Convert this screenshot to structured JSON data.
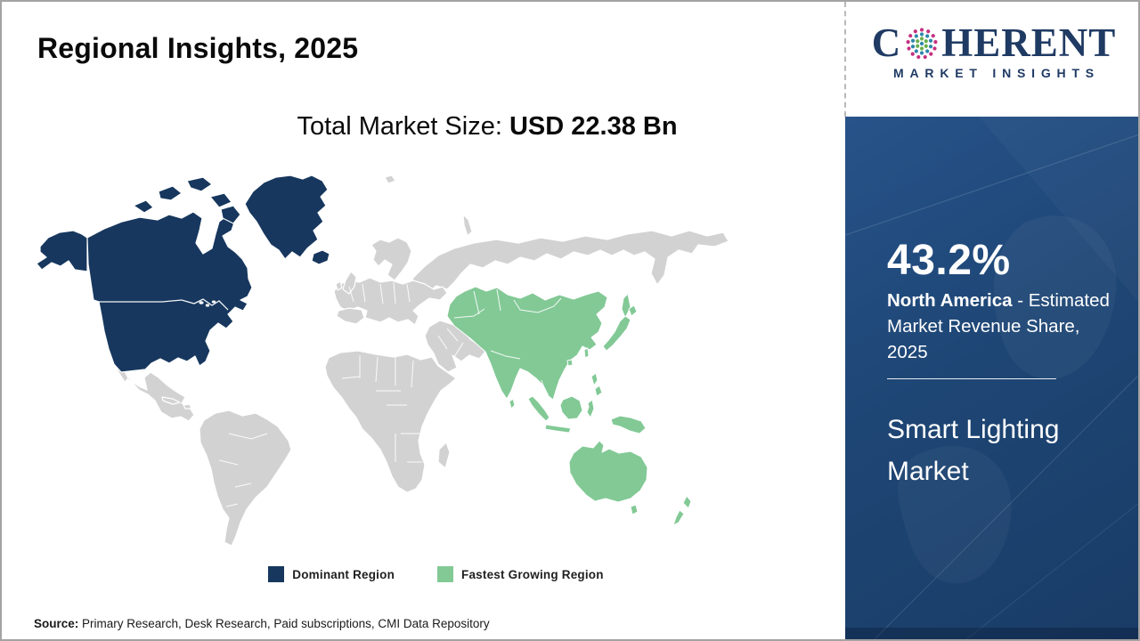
{
  "header": {
    "title": "Regional Insights, 2025"
  },
  "logo": {
    "brand_prefix": "C",
    "brand_suffix": "HERENT",
    "tagline": "MARKET INSIGHTS",
    "brand_color": "#1f3a63",
    "dot_colors": {
      "outer": "#c5307f",
      "mid": "#2e86ab",
      "inner": "#6ab04c"
    }
  },
  "market_size": {
    "label": "Total Market Size: ",
    "value": "USD 22.38 Bn"
  },
  "map": {
    "dominant_color": "#17375e",
    "growing_color": "#82c996",
    "base_land_color": "#d2d2d2",
    "border_color": "#ffffff"
  },
  "legend": [
    {
      "label": "Dominant Region",
      "color": "#17375e"
    },
    {
      "label": "Fastest Growing Region",
      "color": "#82c996"
    }
  ],
  "sidebar": {
    "share_value": "43.2%",
    "region": "North America",
    "desc_rest": " - Estimated Market Revenue Share, 2025",
    "market_name": "Smart Lighting Market",
    "bg_color": "#1e4675"
  },
  "footer": {
    "label": "Source:",
    "text": " Primary Research, Desk Research, Paid subscriptions, CMI Data Repository"
  }
}
